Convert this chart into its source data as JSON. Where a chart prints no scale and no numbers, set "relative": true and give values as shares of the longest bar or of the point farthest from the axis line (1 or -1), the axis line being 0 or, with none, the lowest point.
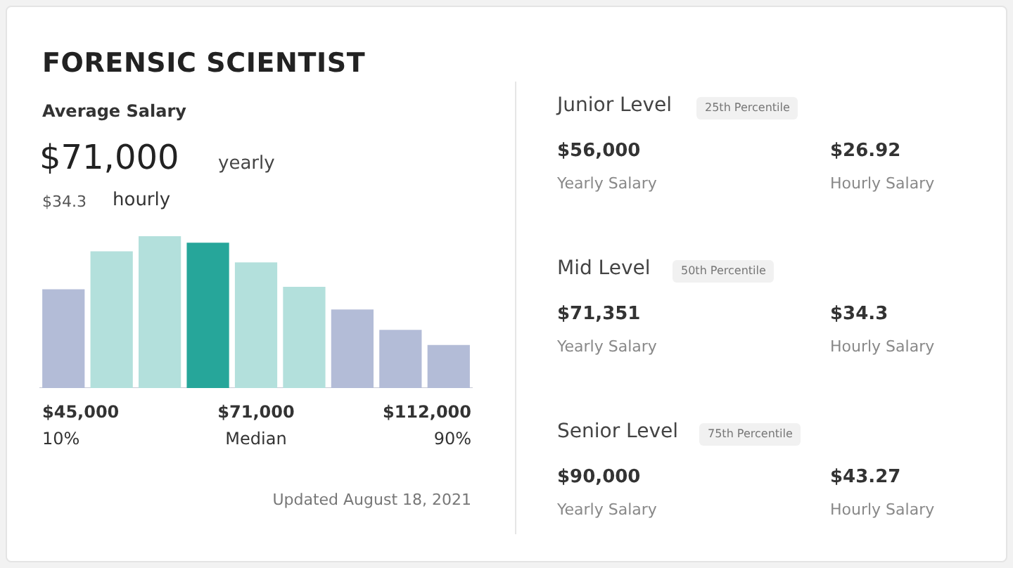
{
  "chart_data": {
    "type": "bar",
    "title": "FORENSIC SCIENTIST",
    "relative": true,
    "categories": [
      null,
      null,
      null,
      null,
      null,
      null,
      null,
      null,
      null
    ],
    "values": [
      0.65,
      0.9,
      1,
      0.957,
      0.827,
      0.667,
      0.517,
      0.383,
      0.283
    ],
    "colors": [
      "#b3bcd7",
      "#b3e0dc",
      "#b3e0dc",
      "#26a69a",
      "#b3e0dc",
      "#b3e0dc",
      "#b3bcd7",
      "#b3bcd7",
      "#b3bcd7"
    ],
    "annotations": [
      "Average Salary",
      "$71,000",
      "yearly",
      "$34.3",
      "hourly",
      "$45,000",
      "10%",
      "$71,000",
      "Median",
      "$112,000",
      "90%",
      "Updated August 18, 2021",
      "Junior Level",
      "25th Percentile",
      "$56,000",
      "Yearly Salary",
      "$26.92",
      "Hourly Salary",
      "Mid Level",
      "50th Percentile",
      "$71,351",
      "Yearly Salary",
      "$34.3",
      "Hourly Salary",
      "Senior Level",
      "75th Percentile",
      "$90,000",
      "Yearly Salary",
      "$43.27",
      "Hourly Salary"
    ],
    "legend": false
  }
}
